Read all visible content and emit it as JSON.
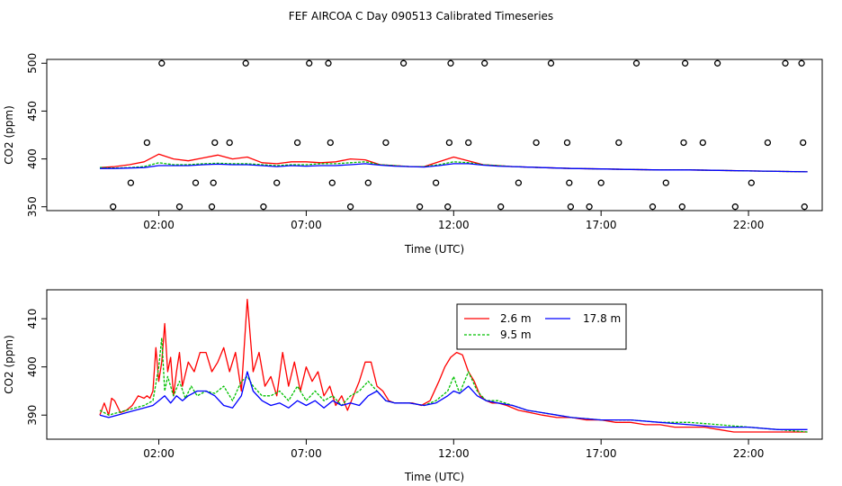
{
  "title": "FEF AIRCOA C  Day 090513  Calibrated Timeseries",
  "chart_data": [
    {
      "type": "scatter",
      "name": "calibration-standards",
      "title": "",
      "xlabel": "Time (UTC)",
      "ylabel": "CO2 (ppm)",
      "xlim": [
        -1.8,
        24.5
      ],
      "ylim": [
        346,
        504
      ],
      "x_ticks": [
        2,
        7,
        12,
        17,
        22
      ],
      "x_tick_labels": [
        "02:00",
        "07:00",
        "12:00",
        "17:00",
        "22:00"
      ],
      "y_ticks": [
        350,
        400,
        450,
        500
      ],
      "y_tick_labels": [
        "350",
        "400",
        "450",
        "500"
      ],
      "calibration_points": {
        "x": [
          0.45,
          1.05,
          1.6,
          2.1,
          2.7,
          3.25,
          3.8,
          3.85,
          3.9,
          4.4,
          4.95,
          5.55,
          6.0,
          6.7,
          7.1,
          7.75,
          7.82,
          7.88,
          8.5,
          9.1,
          9.7,
          10.3,
          10.85,
          11.4,
          11.8,
          11.85,
          11.9,
          12.5,
          13.05,
          13.6,
          14.2,
          14.8,
          15.3,
          15.85,
          15.92,
          15.97,
          16.6,
          17.0,
          17.6,
          18.2,
          18.75,
          19.2,
          19.75,
          19.8,
          19.85,
          20.45,
          20.95,
          21.55,
          22.1,
          22.65,
          23.25,
          23.8,
          23.85,
          23.9
        ],
        "y": [
          350,
          375,
          417,
          500,
          350,
          375,
          350,
          375,
          417,
          417,
          500,
          350,
          375,
          417,
          500,
          500,
          417,
          375,
          350,
          375,
          417,
          500,
          350,
          375,
          350,
          417,
          500,
          417,
          500,
          350,
          375,
          417,
          500,
          417,
          375,
          350,
          350,
          375,
          417,
          500,
          350,
          375,
          350,
          417,
          500,
          417,
          500,
          350,
          375,
          417,
          500,
          500,
          417,
          350
        ]
      },
      "series": [
        {
          "name": "2.6 m",
          "color": "#ff0000",
          "x": [
            0,
            0.5,
            1,
            1.5,
            2,
            2.5,
            3,
            3.5,
            4,
            4.5,
            5,
            5.5,
            6,
            6.5,
            7,
            7.5,
            8,
            8.5,
            9,
            9.5,
            10,
            10.5,
            11,
            11.5,
            12,
            12.5,
            13,
            13.5,
            14,
            15,
            16,
            17,
            18,
            19,
            20,
            21,
            22,
            23,
            24
          ],
          "values": [
            391,
            392,
            394,
            397,
            405,
            400,
            398,
            401,
            404,
            400,
            402,
            396,
            395,
            397,
            397,
            396,
            397,
            400,
            399,
            394,
            393,
            392,
            392,
            397,
            402,
            398,
            394,
            393,
            392,
            391,
            390,
            389.5,
            389,
            388.5,
            388.5,
            388,
            387.5,
            387,
            386.5
          ]
        },
        {
          "name": "9.5 m",
          "color": "#00c000",
          "x": [
            0,
            0.5,
            1,
            1.5,
            2,
            2.5,
            3,
            3.5,
            4,
            4.5,
            5,
            5.5,
            6,
            6.5,
            7,
            7.5,
            8,
            8.5,
            9,
            9.5,
            10,
            10.5,
            11,
            11.5,
            12,
            12.5,
            13,
            13.5,
            14,
            15,
            16,
            17,
            18,
            19,
            20,
            21,
            22,
            23,
            24
          ],
          "values": [
            391,
            390.5,
            391,
            392,
            396,
            394,
            394,
            395,
            395.5,
            395,
            395,
            394,
            393,
            394,
            394,
            395,
            395,
            396,
            397,
            394,
            393,
            392,
            392,
            394,
            397,
            396,
            394,
            393,
            392,
            391,
            390,
            389.5,
            389,
            388.5,
            388.5,
            388,
            387.5,
            387,
            386.5
          ]
        },
        {
          "name": "17.8 m",
          "color": "#0000ff",
          "x": [
            0,
            0.5,
            1,
            1.5,
            2,
            2.5,
            3,
            3.5,
            4,
            4.5,
            5,
            5.5,
            6,
            6.5,
            7,
            7.5,
            8,
            8.5,
            9,
            9.5,
            10,
            10.5,
            11,
            11.5,
            12,
            12.5,
            13,
            13.5,
            14,
            15,
            16,
            17,
            18,
            19,
            20,
            21,
            22,
            23,
            24
          ],
          "values": [
            390,
            390,
            390.5,
            391,
            393,
            393,
            393,
            394,
            394.5,
            394,
            394,
            393,
            392,
            393,
            392.5,
            393,
            393,
            394,
            395,
            393.5,
            392.5,
            392,
            391.5,
            393,
            395,
            395,
            393.5,
            392.5,
            392,
            391,
            390,
            389.5,
            389,
            388.5,
            388.5,
            388,
            387.5,
            387,
            386.5
          ]
        }
      ]
    },
    {
      "type": "line",
      "name": "tower-profiles",
      "title": "",
      "xlabel": "Time (UTC)",
      "ylabel": "CO2 (ppm)",
      "xlim": [
        -1.8,
        24.5
      ],
      "ylim": [
        385,
        416
      ],
      "x_ticks": [
        2,
        7,
        12,
        17,
        22
      ],
      "x_tick_labels": [
        "02:00",
        "07:00",
        "12:00",
        "17:00",
        "22:00"
      ],
      "y_ticks": [
        390,
        400,
        410
      ],
      "y_tick_labels": [
        "390",
        "400",
        "410"
      ],
      "legend": {
        "position": "top-center",
        "entries": [
          "2.6 m",
          "9.5 m",
          "17.8 m"
        ]
      },
      "series": [
        {
          "name": "2.6 m",
          "color": "#ff0000",
          "x": [
            0,
            0.15,
            0.3,
            0.4,
            0.5,
            0.7,
            0.9,
            1.1,
            1.3,
            1.5,
            1.6,
            1.7,
            1.8,
            1.9,
            2.0,
            2.1,
            2.2,
            2.3,
            2.4,
            2.5,
            2.6,
            2.7,
            2.8,
            3.0,
            3.2,
            3.4,
            3.6,
            3.8,
            4.0,
            4.2,
            4.4,
            4.6,
            4.8,
            5.0,
            5.2,
            5.4,
            5.6,
            5.8,
            6.0,
            6.2,
            6.4,
            6.6,
            6.8,
            7.0,
            7.2,
            7.4,
            7.6,
            7.8,
            8.0,
            8.2,
            8.4,
            8.6,
            8.8,
            9.0,
            9.2,
            9.4,
            9.6,
            9.8,
            10.0,
            10.3,
            10.6,
            10.9,
            11.2,
            11.5,
            11.7,
            11.9,
            12.1,
            12.3,
            12.5,
            12.7,
            12.9,
            13.1,
            13.3,
            13.5,
            13.8,
            14.2,
            14.6,
            15.0,
            15.5,
            16.0,
            16.5,
            17.0,
            17.5,
            18.0,
            18.5,
            19.0,
            19.5,
            20.0,
            20.5,
            21.0,
            21.5,
            22.0,
            22.5,
            23.0,
            23.5,
            24.0
          ],
          "values": [
            390,
            392.5,
            390,
            393.5,
            393,
            390.5,
            391,
            392,
            394,
            393.5,
            394,
            393.5,
            395,
            404,
            397,
            401,
            409,
            399,
            402,
            394,
            399,
            403,
            396,
            401,
            399,
            403,
            403,
            399,
            401,
            404,
            399,
            403,
            395,
            414,
            399,
            403,
            396,
            398,
            394,
            403,
            396,
            401,
            395,
            400,
            397,
            399,
            394,
            396,
            392,
            394,
            391,
            394,
            397,
            401,
            401,
            396,
            395,
            393,
            392.5,
            392.5,
            392.5,
            392,
            393,
            397,
            400,
            402,
            403,
            402.5,
            399,
            397,
            394,
            393,
            392.5,
            392.5,
            392,
            391,
            390.5,
            390,
            389.5,
            389.5,
            389,
            389,
            388.5,
            388.5,
            388,
            388,
            387.5,
            387.5,
            387.5,
            387,
            386.5,
            386.5,
            386.5,
            386.5,
            386.5,
            386.5
          ]
        },
        {
          "name": "9.5 m",
          "color": "#00c000",
          "x": [
            0,
            0.3,
            0.6,
            0.9,
            1.2,
            1.5,
            1.8,
            2.0,
            2.1,
            2.2,
            2.3,
            2.5,
            2.7,
            2.9,
            3.1,
            3.3,
            3.6,
            3.9,
            4.2,
            4.5,
            4.8,
            5.0,
            5.2,
            5.5,
            5.8,
            6.1,
            6.4,
            6.7,
            7.0,
            7.3,
            7.6,
            7.9,
            8.2,
            8.5,
            8.8,
            9.1,
            9.4,
            9.7,
            10.0,
            10.5,
            11.0,
            11.4,
            11.8,
            12.0,
            12.2,
            12.5,
            12.8,
            13.1,
            13.5,
            14.0,
            14.5,
            15.0,
            15.5,
            16.0,
            17.0,
            18.0,
            19.0,
            20.0,
            21.0,
            22.0,
            23.0,
            24.0
          ],
          "values": [
            391,
            390,
            390.5,
            391,
            391.5,
            392,
            393,
            400,
            406,
            395,
            398,
            394,
            397,
            393.5,
            396,
            394,
            395,
            394.5,
            396,
            393,
            397,
            398,
            396,
            394,
            394,
            395,
            393,
            396,
            393,
            395,
            393,
            394,
            392,
            394,
            395,
            397,
            395,
            393,
            392.5,
            392.5,
            392,
            393,
            395,
            398,
            394.5,
            399,
            395,
            393,
            393,
            392,
            391,
            390.5,
            390,
            389.5,
            389,
            389,
            388.5,
            388.5,
            388,
            387.5,
            387,
            386.5
          ]
        },
        {
          "name": "17.8 m",
          "color": "#0000ff",
          "x": [
            0,
            0.3,
            0.6,
            0.9,
            1.2,
            1.5,
            1.8,
            2.0,
            2.2,
            2.4,
            2.6,
            2.8,
            3.0,
            3.3,
            3.6,
            3.9,
            4.2,
            4.5,
            4.8,
            5.0,
            5.2,
            5.5,
            5.8,
            6.1,
            6.4,
            6.7,
            7.0,
            7.3,
            7.6,
            7.9,
            8.2,
            8.5,
            8.8,
            9.1,
            9.4,
            9.7,
            10.0,
            10.5,
            11.0,
            11.4,
            11.8,
            12.0,
            12.2,
            12.5,
            12.8,
            13.1,
            13.5,
            14.0,
            14.5,
            15.0,
            15.5,
            16.0,
            17.0,
            18.0,
            19.0,
            20.0,
            21.0,
            22.0,
            23.0,
            24.0
          ],
          "values": [
            390,
            389.5,
            390,
            390.5,
            391,
            391.5,
            392,
            393,
            394,
            392.5,
            394,
            393,
            394,
            395,
            395,
            394,
            392,
            391.5,
            394,
            399,
            395,
            393,
            392,
            392.5,
            391.5,
            393,
            392,
            393,
            391.5,
            393,
            392,
            392.5,
            392,
            394,
            395,
            393,
            392.5,
            392.5,
            392,
            392.5,
            394,
            395,
            394.5,
            396,
            394,
            393,
            392.5,
            392,
            391,
            390.5,
            390,
            389.5,
            389,
            389,
            388.5,
            388,
            387.5,
            387.5,
            387,
            387
          ]
        }
      ]
    }
  ]
}
